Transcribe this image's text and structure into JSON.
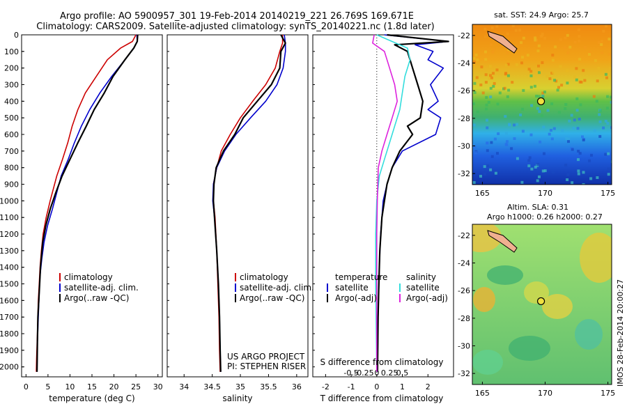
{
  "header": {
    "line1": "Argo profile: AO 5900957_301 19-Feb-2014 20140219_221 26.769S 169.671E",
    "line2": "Climatology: CARS2009. Satellite-adjusted climatology: synTS_20140221.nc (1.8d later)"
  },
  "credits": {
    "project": "US ARGO PROJECT",
    "pi": "PI: STEPHEN RISER",
    "imos_stamp": "IMOS 28-Feb-2014 20:00:27"
  },
  "colors": {
    "climatology": "#cc0000",
    "satellite": "#0000cc",
    "argo": "#000000",
    "satellite_salinity": "#33dddd",
    "argo_salinity_adj": "#dd22dd"
  },
  "chart_data": [
    {
      "type": "line",
      "id": "temperature",
      "xlabel": "temperature (deg C)",
      "xlim": [
        -1,
        31
      ],
      "ylim": [
        2060,
        0
      ],
      "xticks": [
        "0",
        "5",
        "10",
        "15",
        "20",
        "25",
        "30"
      ],
      "yticks": [
        "0",
        "100",
        "200",
        "300",
        "400",
        "500",
        "600",
        "700",
        "800",
        "900",
        "1000",
        "1100",
        "1200",
        "1300",
        "1400",
        "1500",
        "1600",
        "1700",
        "1800",
        "1900",
        "2000"
      ],
      "legend": [
        "climatology",
        "satellite-adj. clim.",
        "Argo(..raw -QC)"
      ],
      "series": [
        {
          "name": "climatology",
          "color": "#cc0000",
          "x": [
            25.0,
            24.2,
            21.5,
            18.5,
            16.0,
            13.5,
            11.8,
            10.5,
            9.5,
            8.3,
            7.0,
            5.5,
            4.6,
            3.9,
            3.5,
            3.2,
            3.0,
            2.8,
            2.6,
            2.4,
            2.35
          ],
          "y": [
            0,
            40,
            80,
            150,
            250,
            350,
            450,
            550,
            650,
            750,
            850,
            1000,
            1100,
            1200,
            1300,
            1400,
            1500,
            1600,
            1800,
            1950,
            2030
          ]
        },
        {
          "name": "satellite-adj. clim.",
          "color": "#0000cc",
          "x": [
            25.2,
            25.3,
            24.5,
            22.5,
            19.5,
            16.8,
            14.5,
            12.6,
            11.0,
            9.6,
            8.0,
            7.0,
            6.0,
            4.9,
            4.1,
            3.6,
            3.2,
            3.0,
            2.8,
            2.6,
            2.5
          ],
          "y": [
            0,
            40,
            80,
            150,
            250,
            350,
            450,
            550,
            650,
            750,
            850,
            950,
            1050,
            1150,
            1250,
            1350,
            1450,
            1550,
            1700,
            1850,
            2030
          ]
        },
        {
          "name": "Argo(..raw -QC)",
          "color": "#000000",
          "x": [
            25.4,
            25.3,
            24.5,
            22.5,
            19.8,
            17.8,
            15.5,
            13.7,
            11.8,
            10.0,
            8.2,
            6.8,
            5.5,
            4.5,
            3.8,
            3.3,
            3.0,
            2.7,
            2.6,
            2.5
          ],
          "y": [
            0,
            40,
            80,
            150,
            250,
            350,
            450,
            550,
            650,
            750,
            850,
            950,
            1050,
            1150,
            1250,
            1400,
            1550,
            1700,
            1850,
            2030
          ]
        }
      ]
    },
    {
      "type": "line",
      "id": "salinity",
      "xlabel": "salinity",
      "xlim": [
        33.7,
        36.2
      ],
      "ylim": [
        2060,
        0
      ],
      "xticks": [
        "34",
        "34.5",
        "35",
        "35.5",
        "36"
      ],
      "legend": [
        "climatology",
        "satellite-adj. clim.",
        "Argo(..raw -QC)"
      ],
      "series": [
        {
          "name": "climatology",
          "color": "#cc0000",
          "x": [
            35.75,
            35.75,
            35.7,
            35.62,
            35.45,
            35.22,
            35.0,
            34.82,
            34.66,
            34.58,
            34.52,
            34.52,
            34.55,
            34.58,
            34.6,
            34.62,
            34.63,
            34.64
          ],
          "y": [
            0,
            50,
            100,
            200,
            300,
            400,
            500,
            600,
            700,
            800,
            900,
            1000,
            1100,
            1300,
            1500,
            1700,
            1900,
            2030
          ]
        },
        {
          "name": "satellite-adj. clim.",
          "color": "#0000cc",
          "x": [
            35.78,
            35.8,
            35.8,
            35.76,
            35.65,
            35.45,
            35.18,
            34.92,
            34.72,
            34.58,
            34.52,
            34.51,
            34.54,
            34.58,
            34.61,
            34.63,
            34.64,
            34.65
          ],
          "y": [
            0,
            50,
            100,
            200,
            300,
            400,
            500,
            600,
            700,
            800,
            900,
            1000,
            1100,
            1300,
            1500,
            1700,
            1900,
            2030
          ]
        },
        {
          "name": "Argo(..raw -QC)",
          "color": "#000000",
          "x": [
            35.72,
            35.8,
            35.72,
            35.7,
            35.55,
            35.3,
            35.05,
            34.9,
            34.7,
            34.57,
            34.53,
            34.52,
            34.54,
            34.58,
            34.61,
            34.63,
            34.64,
            34.65
          ],
          "y": [
            0,
            50,
            100,
            200,
            300,
            400,
            500,
            600,
            700,
            800,
            900,
            1000,
            1100,
            1300,
            1500,
            1700,
            1900,
            2030
          ]
        }
      ]
    },
    {
      "type": "line",
      "id": "difference",
      "xlabel": "T difference from climatology",
      "xlabel_top": "S difference from climatology",
      "xlim": [
        -2.5,
        3.0
      ],
      "ylim": [
        2060,
        0
      ],
      "xticks": [
        "-2",
        "-1",
        "0",
        "1",
        "2"
      ],
      "xticks_s": [
        "-0.5",
        "-0.25",
        "0",
        "0.25",
        "0.5"
      ],
      "legend_temperature": [
        "temperature",
        "satellite",
        "Argo(-adj)"
      ],
      "legend_salinity": [
        "salinity",
        "satellite",
        "Argo(-adj)"
      ],
      "series": [
        {
          "name": "temperature satellite",
          "color": "#0000cc",
          "x": [
            0.3,
            2.8,
            1.5,
            2.2,
            2.0,
            2.6,
            2.1,
            2.4,
            2.0,
            2.5,
            2.3,
            1.0,
            0.6,
            0.4,
            0.25,
            0.15,
            0.1,
            0.05,
            0.03
          ],
          "y": [
            0,
            40,
            60,
            100,
            150,
            200,
            300,
            400,
            450,
            500,
            600,
            700,
            800,
            900,
            1000,
            1200,
            1400,
            1700,
            2030
          ]
        },
        {
          "name": "temperature Argo(-adj)",
          "color": "#000000",
          "x": [
            0.4,
            2.8,
            0.7,
            1.2,
            1.4,
            1.6,
            1.8,
            1.7,
            1.2,
            1.4,
            0.9,
            0.6,
            0.4,
            0.3,
            0.2,
            0.12,
            0.08,
            0.05,
            0.03
          ],
          "y": [
            0,
            40,
            60,
            100,
            200,
            300,
            400,
            500,
            550,
            600,
            700,
            800,
            900,
            1000,
            1100,
            1300,
            1500,
            1700,
            2030
          ]
        },
        {
          "name": "salinity satellite",
          "color": "#33dddd",
          "x": [
            0.0,
            0.6,
            0.65,
            0.55,
            0.5,
            0.45,
            0.35,
            0.25,
            0.15,
            0.05,
            0.0,
            -0.02,
            -0.02,
            -0.01,
            0.0
          ],
          "y": [
            0,
            80,
            150,
            250,
            350,
            450,
            550,
            650,
            750,
            850,
            1000,
            1200,
            1500,
            1800,
            2030
          ]
        },
        {
          "name": "salinity Argo(-adj)",
          "color": "#dd22dd",
          "x": [
            -0.05,
            -0.08,
            0.15,
            0.25,
            0.35,
            0.4,
            0.3,
            0.2,
            0.1,
            0.03,
            0.01,
            0.0,
            0.0,
            0.0
          ],
          "y": [
            0,
            50,
            100,
            200,
            300,
            400,
            500,
            600,
            700,
            800,
            1000,
            1200,
            1600,
            2030
          ]
        }
      ]
    },
    {
      "type": "heatmap",
      "id": "sst_map",
      "title": "sat. SST: 24.9 Argo: 25.7",
      "xlim": [
        164.2,
        175.3
      ],
      "ylim": [
        -32.8,
        -21.2
      ],
      "xticks": [
        "165",
        "170",
        "175"
      ],
      "yticks": [
        "-22",
        "-24",
        "-26",
        "-28",
        "-30",
        "-32"
      ],
      "float_position": {
        "lon": 169.67,
        "lat": -26.77
      }
    },
    {
      "type": "heatmap",
      "id": "sla_map",
      "title": "Altim. SLA: 0.31",
      "subtitle": "Argo h1000: 0.26 h2000: 0.27",
      "xlim": [
        164.2,
        175.3
      ],
      "ylim": [
        -32.8,
        -21.2
      ],
      "xticks": [
        "165",
        "170",
        "175"
      ],
      "yticks": [
        "-22",
        "-24",
        "-26",
        "-28",
        "-30",
        "-32"
      ],
      "float_position": {
        "lon": 169.67,
        "lat": -26.77
      }
    }
  ]
}
